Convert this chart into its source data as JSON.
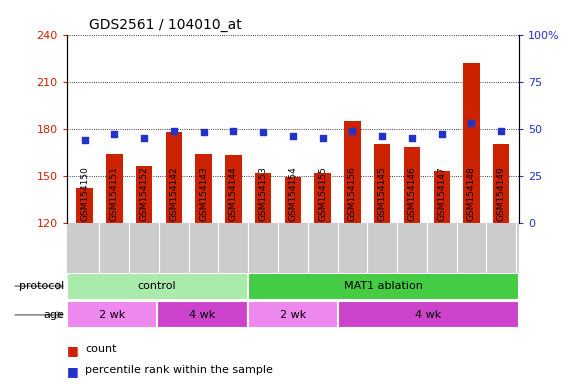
{
  "title": "GDS2561 / 104010_at",
  "samples": [
    "GSM154150",
    "GSM154151",
    "GSM154152",
    "GSM154142",
    "GSM154143",
    "GSM154144",
    "GSM154153",
    "GSM154154",
    "GSM154155",
    "GSM154156",
    "GSM154145",
    "GSM154146",
    "GSM154147",
    "GSM154148",
    "GSM154149"
  ],
  "counts": [
    142,
    164,
    156,
    178,
    164,
    163,
    152,
    149,
    152,
    185,
    170,
    168,
    153,
    222,
    170
  ],
  "percentile": [
    44,
    47,
    45,
    49,
    48,
    49,
    48,
    46,
    45,
    49,
    46,
    45,
    47,
    53,
    49
  ],
  "ylim_left": [
    120,
    240
  ],
  "ylim_right": [
    0,
    100
  ],
  "yticks_left": [
    120,
    150,
    180,
    210,
    240
  ],
  "yticks_right": [
    0,
    25,
    50,
    75,
    100
  ],
  "ytick_right_labels": [
    "0",
    "25",
    "50",
    "75",
    "100%"
  ],
  "bar_color": "#cc2200",
  "dot_color": "#2233cc",
  "protocol_groups": [
    {
      "label": "control",
      "start": 0,
      "end": 6,
      "color": "#aaeaaa"
    },
    {
      "label": "MAT1 ablation",
      "start": 6,
      "end": 15,
      "color": "#44cc44"
    }
  ],
  "age_groups": [
    {
      "label": "2 wk",
      "start": 0,
      "end": 3,
      "color": "#ee88ee"
    },
    {
      "label": "4 wk",
      "start": 3,
      "end": 6,
      "color": "#cc44cc"
    },
    {
      "label": "2 wk",
      "start": 6,
      "end": 9,
      "color": "#ee88ee"
    },
    {
      "label": "4 wk",
      "start": 9,
      "end": 15,
      "color": "#cc44cc"
    }
  ],
  "left_axis_color": "#cc2200",
  "right_axis_color": "#2233cc",
  "xlabel_bg": "#cccccc",
  "row_label_protocol": "protocol",
  "row_label_age": "age"
}
